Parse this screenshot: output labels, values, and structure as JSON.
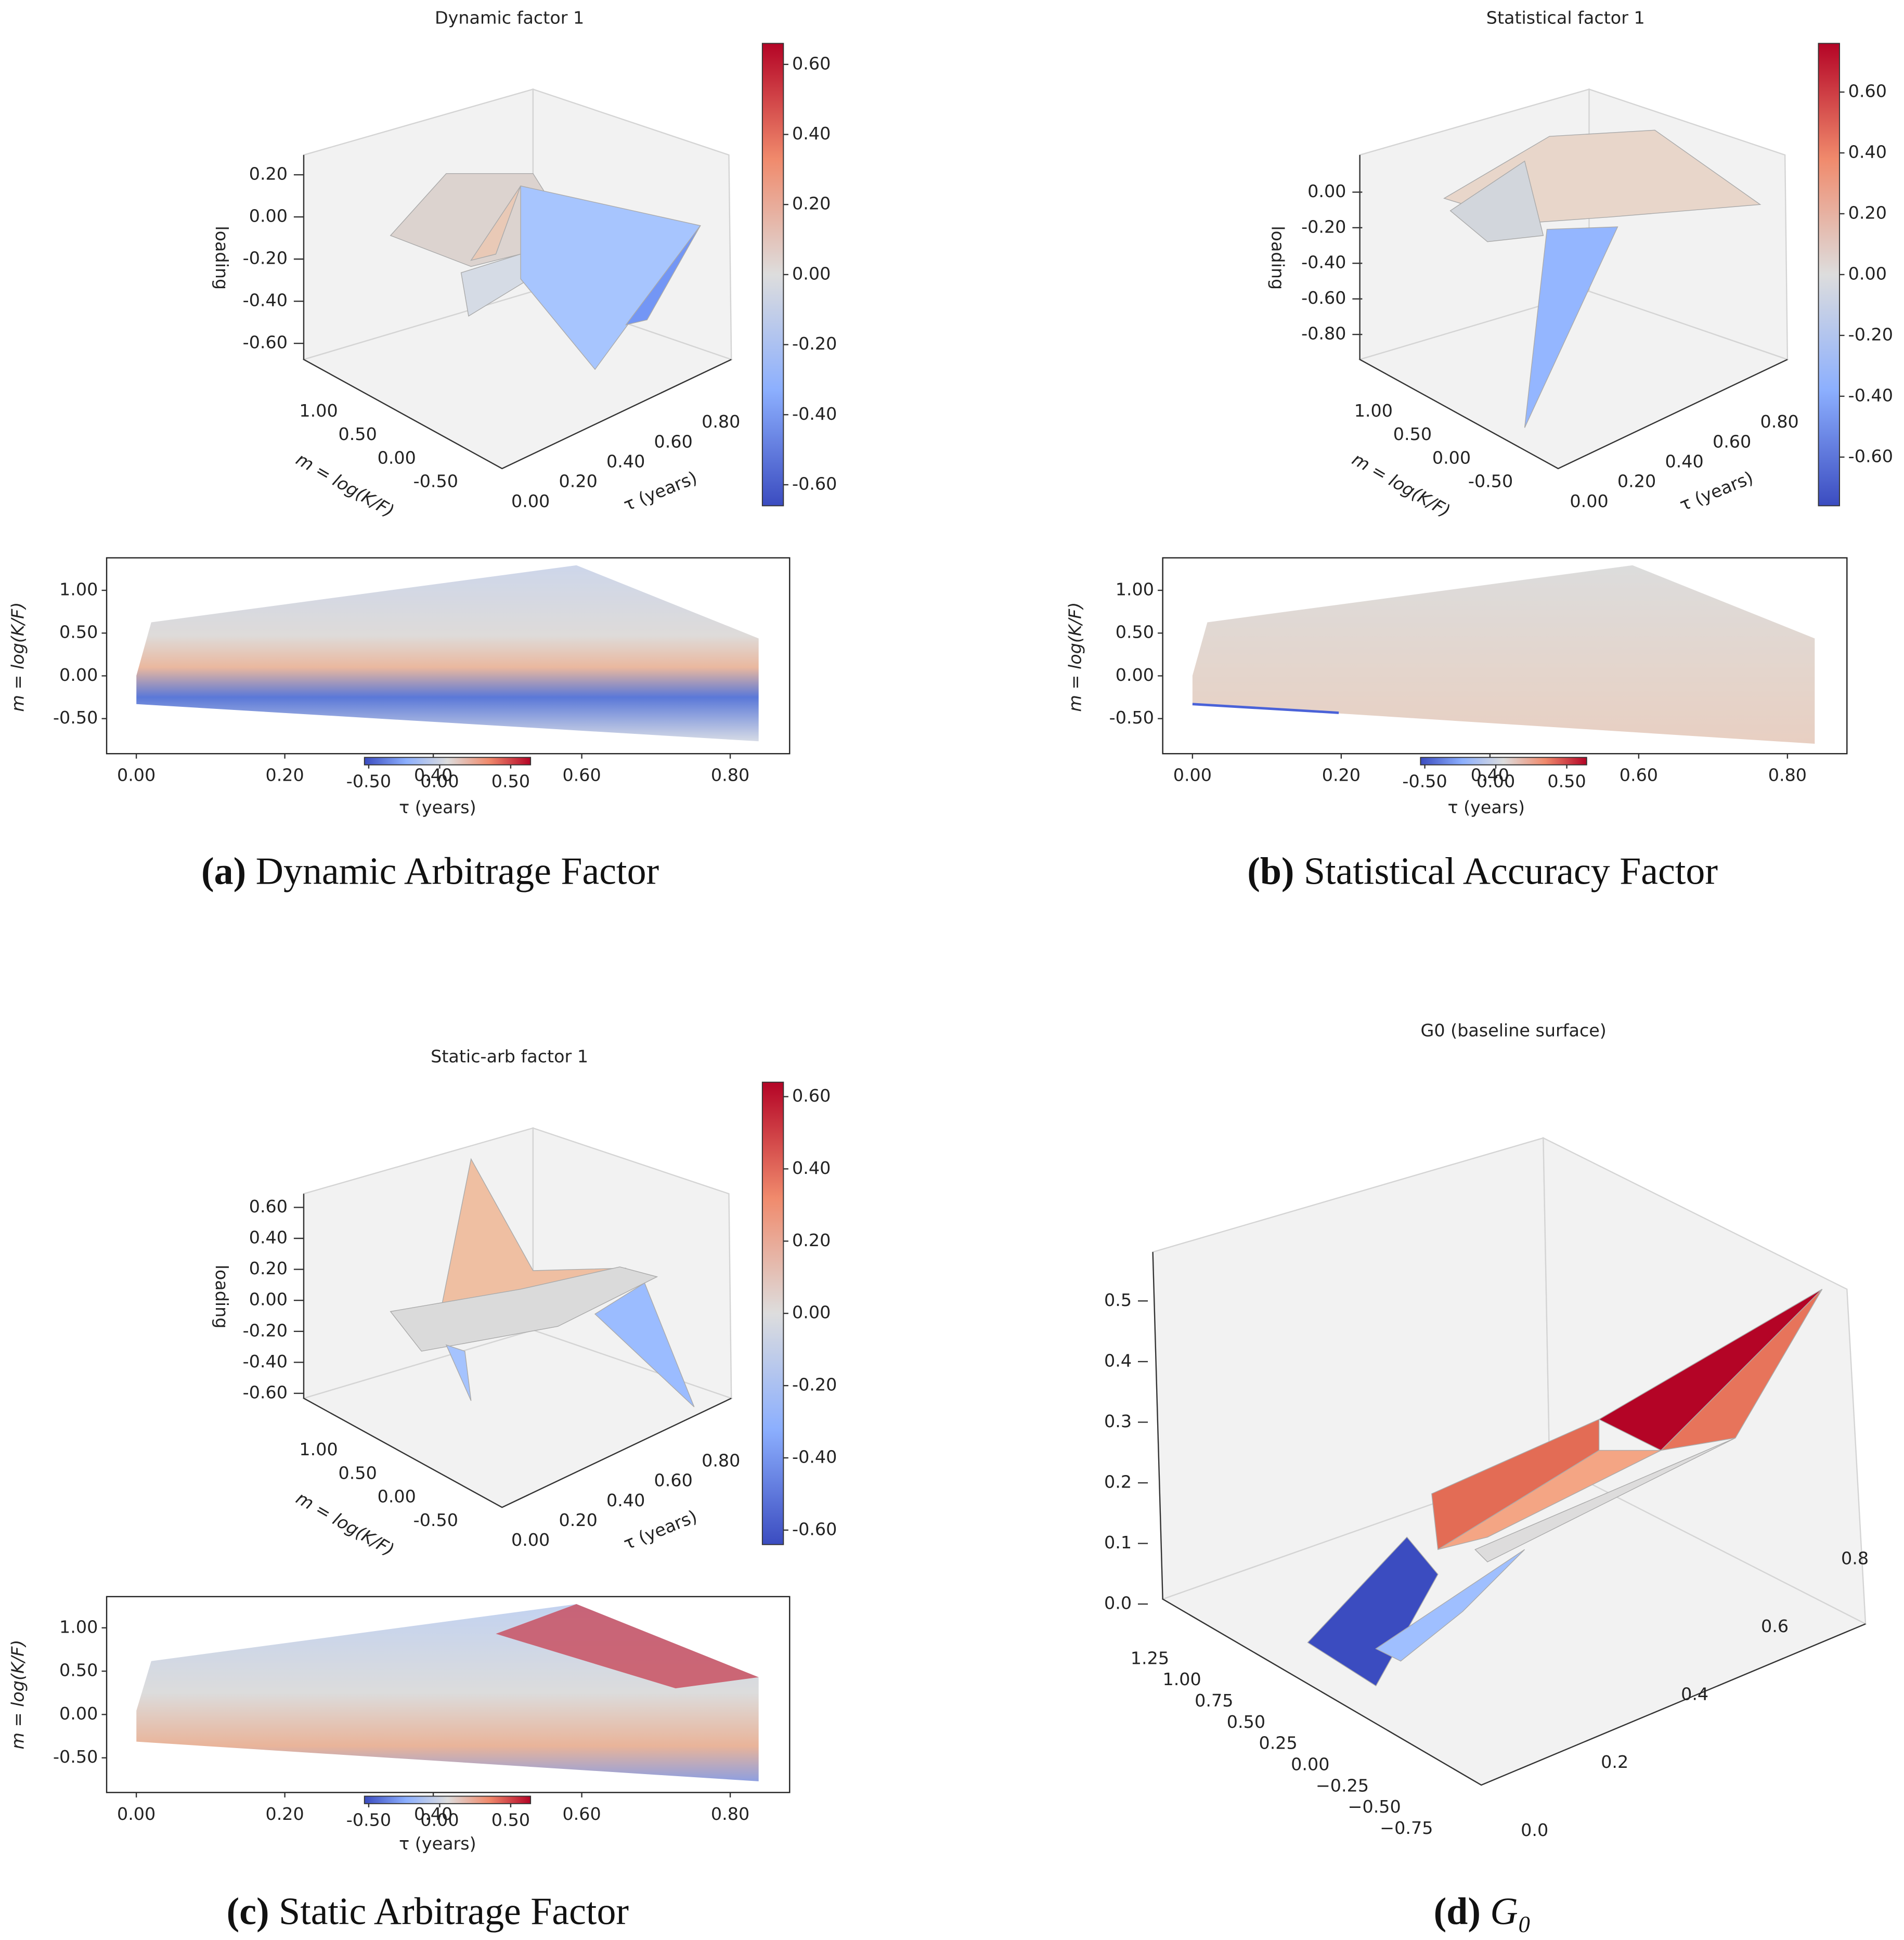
{
  "chart_data": [
    {
      "type": "surface3d",
      "title": "Dynamic factor 1",
      "zlabel": "loading",
      "ylabel": "m = log(K/F)",
      "xlabel": "τ (years)",
      "xticks": [
        {
          "value": 0,
          "label": "0.00"
        },
        {
          "value": 0.2,
          "label": "0.20"
        },
        {
          "value": 0.4,
          "label": "0.40"
        },
        {
          "value": 0.6,
          "label": "0.60"
        },
        {
          "value": 0.8,
          "label": "0.80"
        }
      ],
      "yticks": [
        {
          "value": 1,
          "label": "1.00"
        },
        {
          "value": 0.5,
          "label": "0.50"
        },
        {
          "value": 0,
          "label": "0.00"
        },
        {
          "value": -0.5,
          "label": "-0.50"
        }
      ],
      "zticks": [
        {
          "value": 0.2,
          "label": "0.20"
        },
        {
          "value": 0,
          "label": "0.00"
        },
        {
          "value": -0.2,
          "label": "-0.20"
        },
        {
          "value": -0.4,
          "label": "-0.40"
        },
        {
          "value": -0.6,
          "label": "-0.60"
        }
      ],
      "colorbar_lim": [
        -0.66,
        0.66
      ],
      "colorbar_ticks": [
        {
          "value": 0.6,
          "label": "0.60"
        },
        {
          "value": 0.4,
          "label": "0.40"
        },
        {
          "value": 0.2,
          "label": "0.20"
        },
        {
          "value": 0,
          "label": "0.00"
        },
        {
          "value": -0.2,
          "label": "-0.20"
        },
        {
          "value": -0.4,
          "label": "-0.40"
        },
        {
          "value": -0.6,
          "label": "-0.60"
        }
      ]
    },
    {
      "type": "heatmap",
      "ylabel": "m = log(K/F)",
      "xlabel": "τ (years)",
      "xlim": [
        -0.04,
        0.88
      ],
      "ylim": [
        -0.91,
        1.38
      ],
      "xticks": [
        {
          "value": 0,
          "label": "0.00"
        },
        {
          "value": 0.2,
          "label": "0.20"
        },
        {
          "value": 0.4,
          "label": "0.40"
        },
        {
          "value": 0.6,
          "label": "0.60"
        },
        {
          "value": 0.8,
          "label": "0.80"
        }
      ],
      "yticks": [
        {
          "value": 1,
          "label": "1.00"
        },
        {
          "value": 0.5,
          "label": "0.50"
        },
        {
          "value": 0,
          "label": "0.00"
        },
        {
          "value": -0.5,
          "label": "-0.50"
        }
      ],
      "colorbar_lim": [
        -0.53,
        0.64
      ],
      "colorbar_ticks": [
        {
          "value": -0.5,
          "label": "-0.50"
        },
        {
          "value": 0,
          "label": "0.00"
        },
        {
          "value": 0.5,
          "label": "0.50"
        }
      ]
    },
    {
      "type": "surface3d",
      "title": "Statistical factor 1",
      "zlabel": "loading",
      "ylabel": "m = log(K/F)",
      "xlabel": "τ (years)",
      "xticks": [
        {
          "value": 0,
          "label": "0.00"
        },
        {
          "value": 0.2,
          "label": "0.20"
        },
        {
          "value": 0.4,
          "label": "0.40"
        },
        {
          "value": 0.6,
          "label": "0.60"
        },
        {
          "value": 0.8,
          "label": "0.80"
        }
      ],
      "yticks": [
        {
          "value": 1,
          "label": "1.00"
        },
        {
          "value": 0.5,
          "label": "0.50"
        },
        {
          "value": 0,
          "label": "0.00"
        },
        {
          "value": -0.5,
          "label": "-0.50"
        }
      ],
      "zticks": [
        {
          "value": 0,
          "label": "0.00"
        },
        {
          "value": -0.2,
          "label": "-0.20"
        },
        {
          "value": -0.4,
          "label": "-0.40"
        },
        {
          "value": -0.6,
          "label": "-0.60"
        },
        {
          "value": -0.8,
          "label": "-0.80"
        }
      ],
      "colorbar_lim": [
        -0.76,
        0.76
      ],
      "colorbar_ticks": [
        {
          "value": 0.6,
          "label": "0.60"
        },
        {
          "value": 0.4,
          "label": "0.40"
        },
        {
          "value": 0.2,
          "label": "0.20"
        },
        {
          "value": 0,
          "label": "0.00"
        },
        {
          "value": -0.2,
          "label": "-0.20"
        },
        {
          "value": -0.4,
          "label": "-0.40"
        },
        {
          "value": -0.6,
          "label": "-0.60"
        }
      ]
    },
    {
      "type": "heatmap",
      "ylabel": "m = log(K/F)",
      "xlabel": "τ (years)",
      "xlim": [
        -0.04,
        0.88
      ],
      "ylim": [
        -0.91,
        1.38
      ],
      "xticks": [
        {
          "value": 0,
          "label": "0.00"
        },
        {
          "value": 0.2,
          "label": "0.20"
        },
        {
          "value": 0.4,
          "label": "0.40"
        },
        {
          "value": 0.6,
          "label": "0.60"
        },
        {
          "value": 0.8,
          "label": "0.80"
        }
      ],
      "yticks": [
        {
          "value": 1,
          "label": "1.00"
        },
        {
          "value": 0.5,
          "label": "0.50"
        },
        {
          "value": 0,
          "label": "0.00"
        },
        {
          "value": -0.5,
          "label": "-0.50"
        }
      ],
      "colorbar_lim": [
        -0.53,
        0.64
      ],
      "colorbar_ticks": [
        {
          "value": -0.5,
          "label": "-0.50"
        },
        {
          "value": 0,
          "label": "0.00"
        },
        {
          "value": 0.5,
          "label": "0.50"
        }
      ]
    },
    {
      "type": "surface3d",
      "title": "Static-arb factor 1",
      "zlabel": "loading",
      "ylabel": "m = log(K/F)",
      "xlabel": "τ (years)",
      "xticks": [
        {
          "value": 0,
          "label": "0.00"
        },
        {
          "value": 0.2,
          "label": "0.20"
        },
        {
          "value": 0.4,
          "label": "0.40"
        },
        {
          "value": 0.6,
          "label": "0.60"
        },
        {
          "value": 0.8,
          "label": "0.80"
        }
      ],
      "yticks": [
        {
          "value": 1,
          "label": "1.00"
        },
        {
          "value": 0.5,
          "label": "0.50"
        },
        {
          "value": 0,
          "label": "0.00"
        },
        {
          "value": -0.5,
          "label": "-0.50"
        }
      ],
      "zticks": [
        {
          "value": 0.6,
          "label": "0.60"
        },
        {
          "value": 0.4,
          "label": "0.40"
        },
        {
          "value": 0.2,
          "label": "0.20"
        },
        {
          "value": 0,
          "label": "0.00"
        },
        {
          "value": -0.2,
          "label": "-0.20"
        },
        {
          "value": -0.4,
          "label": "-0.40"
        },
        {
          "value": -0.6,
          "label": "-0.60"
        }
      ],
      "colorbar_lim": [
        -0.64,
        0.64
      ],
      "colorbar_ticks": [
        {
          "value": 0.6,
          "label": "0.60"
        },
        {
          "value": 0.4,
          "label": "0.40"
        },
        {
          "value": 0.2,
          "label": "0.20"
        },
        {
          "value": 0,
          "label": "0.00"
        },
        {
          "value": -0.2,
          "label": "-0.20"
        },
        {
          "value": -0.4,
          "label": "-0.40"
        },
        {
          "value": -0.6,
          "label": "-0.60"
        }
      ]
    },
    {
      "type": "heatmap",
      "ylabel": "m = log(K/F)",
      "xlabel": "τ (years)",
      "xlim": [
        -0.04,
        0.88
      ],
      "ylim": [
        -0.9,
        1.36
      ],
      "xticks": [
        {
          "value": 0,
          "label": "0.00"
        },
        {
          "value": 0.2,
          "label": "0.20"
        },
        {
          "value": 0.4,
          "label": "0.40"
        },
        {
          "value": 0.6,
          "label": "0.60"
        },
        {
          "value": 0.8,
          "label": "0.80"
        }
      ],
      "yticks": [
        {
          "value": 1,
          "label": "1.00"
        },
        {
          "value": 0.5,
          "label": "0.50"
        },
        {
          "value": 0,
          "label": "0.00"
        },
        {
          "value": -0.5,
          "label": "-0.50"
        }
      ],
      "colorbar_lim": [
        -0.53,
        0.64
      ],
      "colorbar_ticks": [
        {
          "value": -0.5,
          "label": "-0.50"
        },
        {
          "value": 0,
          "label": "0.00"
        },
        {
          "value": 0.5,
          "label": "0.50"
        }
      ]
    },
    {
      "type": "surface3d",
      "title": "G0 (baseline surface)",
      "xticks": [
        {
          "value": 0,
          "label": "0.0"
        },
        0.2,
        0.4,
        0.6,
        0.8
      ],
      "yticks": [
        1.25,
        {
          "value": 1,
          "label": "1.00"
        },
        0.75,
        {
          "value": 0.5,
          "label": "0.50"
        },
        0.25,
        {
          "value": 0,
          "label": "0.00"
        },
        {
          "value": -0.25,
          "label": "−0.25"
        },
        {
          "value": -0.5,
          "label": "−0.50"
        },
        {
          "value": -0.75,
          "label": "−0.75"
        }
      ],
      "zticks": [
        0.5,
        0.4,
        0.3,
        0.2,
        0.1,
        {
          "value": 0,
          "label": "0.0"
        }
      ]
    }
  ],
  "captions": [
    {
      "label": "(a)",
      "text": "Dynamic Arbitrage Factor"
    },
    {
      "label": "(b)",
      "text": "Statistical Accuracy Factor"
    },
    {
      "label": "(c)",
      "text": "Static Arbitrage Factor"
    },
    {
      "label": "(d)",
      "text": "G₀"
    }
  ]
}
